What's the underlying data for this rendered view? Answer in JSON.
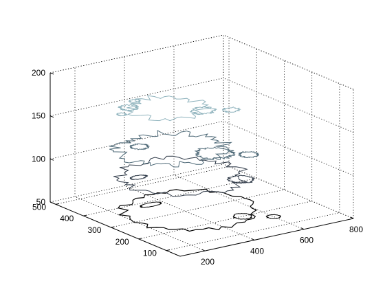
{
  "chart_data": {
    "type": "contour3d",
    "title": "",
    "xlabel": "",
    "ylabel": "",
    "zlabel": "",
    "grid": true,
    "box": "open-back-planes",
    "view": "3D isometric",
    "x_ticks": [
      200,
      400,
      600,
      800
    ],
    "y_ticks": [
      100,
      200,
      300,
      400,
      500
    ],
    "z_ticks": [
      50,
      100,
      150,
      200
    ],
    "xlim": [
      100,
      800
    ],
    "ylim": [
      50,
      520
    ],
    "zlim": [
      50,
      200
    ],
    "series": [
      {
        "level": 50,
        "color": "#000000"
      },
      {
        "level": 85,
        "color": "#2f3a48"
      },
      {
        "level": 110,
        "color": "#4f6a78"
      },
      {
        "level": 150,
        "color": "#8fb3bd"
      }
    ]
  }
}
